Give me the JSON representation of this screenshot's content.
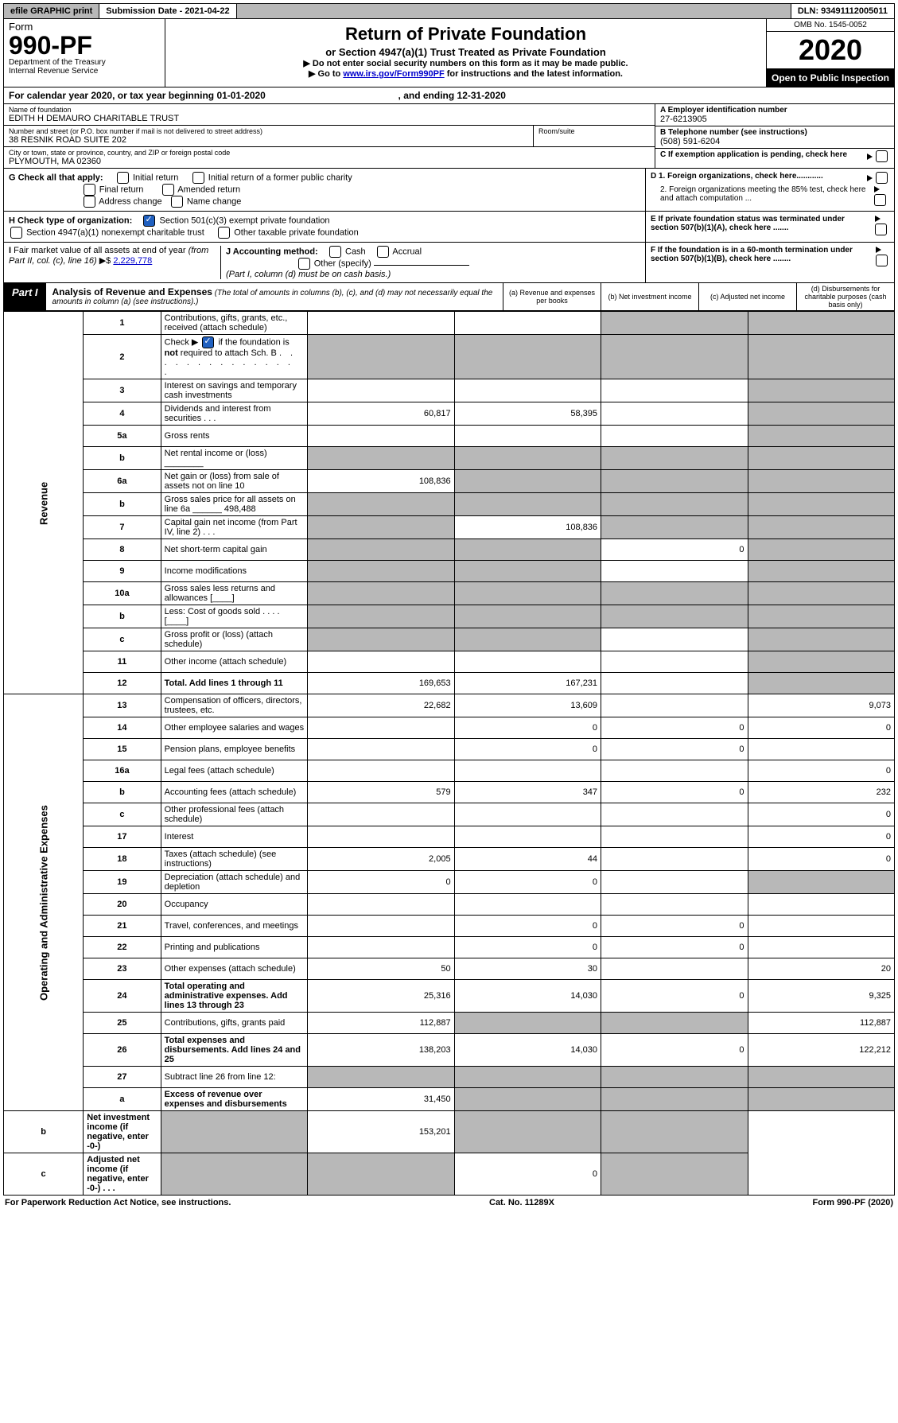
{
  "top": {
    "efile": "efile GRAPHIC print",
    "submission_label": "Submission Date - 2021-04-22",
    "dln": "DLN: 93491112005011"
  },
  "header": {
    "form_word": "Form",
    "form_no": "990-PF",
    "dept": "Department of the Treasury",
    "irs": "Internal Revenue Service",
    "title": "Return of Private Foundation",
    "subtitle": "or Section 4947(a)(1) Trust Treated as Private Foundation",
    "instr1": "▶ Do not enter social security numbers on this form as it may be made public.",
    "instr2_pre": "▶ Go to ",
    "instr2_link": "www.irs.gov/Form990PF",
    "instr2_post": " for instructions and the latest information.",
    "omb": "OMB No. 1545-0052",
    "year": "2020",
    "open": "Open to Public Inspection"
  },
  "calyear": {
    "text_pre": "For calendar year 2020, or tax year beginning ",
    "begin": "01-01-2020",
    "mid": " , and ending ",
    "end": "12-31-2020"
  },
  "entity": {
    "name_label": "Name of foundation",
    "name": "EDITH H DEMAURO CHARITABLE TRUST",
    "addr_label": "Number and street (or P.O. box number if mail is not delivered to street address)",
    "addr": "38 RESNIK ROAD SUITE 202",
    "room_label": "Room/suite",
    "city_label": "City or town, state or province, country, and ZIP or foreign postal code",
    "city": "PLYMOUTH, MA  02360",
    "a_label": "A Employer identification number",
    "ein": "27-6213905",
    "b_label": "B Telephone number (see instructions)",
    "phone": "(508) 591-6204",
    "c_label": "C If exemption application is pending, check here"
  },
  "checks": {
    "g_label": "G Check all that apply:",
    "g_opts": [
      "Initial return",
      "Initial return of a former public charity",
      "Final return",
      "Amended return",
      "Address change",
      "Name change"
    ],
    "h_label": "H Check type of organization:",
    "h_opt1": "Section 501(c)(3) exempt private foundation",
    "h_opt2": "Section 4947(a)(1) nonexempt charitable trust",
    "h_opt3": "Other taxable private foundation",
    "i_label": "I Fair market value of all assets at end of year (from Part II, col. (c), line 16) ▶$ ",
    "i_value": "2,229,778",
    "j_label": "J Accounting method:",
    "j_cash": "Cash",
    "j_accrual": "Accrual",
    "j_other": "Other (specify)",
    "j_note": "(Part I, column (d) must be on cash basis.)",
    "d1": "D 1. Foreign organizations, check here............",
    "d2": "2. Foreign organizations meeting the 85% test, check here and attach computation ...",
    "e": "E  If private foundation status was terminated under section 507(b)(1)(A), check here .......",
    "f": "F  If the foundation is in a 60-month termination under section 507(b)(1)(B), check here ........"
  },
  "part1": {
    "label": "Part I",
    "title": "Analysis of Revenue and Expenses",
    "note": " (The total of amounts in columns (b), (c), and (d) may not necessarily equal the amounts in column (a) (see instructions).)",
    "col_a": "(a) Revenue and expenses per books",
    "col_b": "(b) Net investment income",
    "col_c": "(c) Adjusted net income",
    "col_d": "(d) Disbursements for charitable purposes (cash basis only)"
  },
  "sections": {
    "revenue": "Revenue",
    "expenses": "Operating and Administrative Expenses"
  },
  "rows": [
    {
      "n": "1",
      "d": "Contributions, gifts, grants, etc., received (attach schedule)",
      "a": "",
      "b": "",
      "c": "s",
      "dd": "s"
    },
    {
      "n": "2",
      "d": "Check ▶ ☑ if the foundation is not required to attach Sch. B",
      "a": "s",
      "b": "s",
      "c": "s",
      "dd": "s",
      "bold_not": true
    },
    {
      "n": "3",
      "d": "Interest on savings and temporary cash investments",
      "a": "",
      "b": "",
      "c": "",
      "dd": "s"
    },
    {
      "n": "4",
      "d": "Dividends and interest from securities    .  .  .",
      "a": "60,817",
      "b": "58,395",
      "c": "",
      "dd": "s"
    },
    {
      "n": "5a",
      "d": "Gross rents",
      "a": "",
      "b": "",
      "c": "",
      "dd": "s"
    },
    {
      "n": "b",
      "d": "Net rental income or (loss)  ________",
      "a": "s",
      "b": "s",
      "c": "s",
      "dd": "s"
    },
    {
      "n": "6a",
      "d": "Net gain or (loss) from sale of assets not on line 10",
      "a": "108,836",
      "b": "s",
      "c": "s",
      "dd": "s"
    },
    {
      "n": "b",
      "d": "Gross sales price for all assets on line 6a ______ 498,488",
      "a": "s",
      "b": "s",
      "c": "s",
      "dd": "s"
    },
    {
      "n": "7",
      "d": "Capital gain net income (from Part IV, line 2)   .  .  .",
      "a": "s",
      "b": "108,836",
      "c": "s",
      "dd": "s"
    },
    {
      "n": "8",
      "d": "Net short-term capital gain",
      "a": "s",
      "b": "s",
      "c": "0",
      "dd": "s"
    },
    {
      "n": "9",
      "d": "Income modifications",
      "a": "s",
      "b": "s",
      "c": "",
      "dd": "s"
    },
    {
      "n": "10a",
      "d": "Gross sales less returns and allowances  [____]",
      "a": "s",
      "b": "s",
      "c": "s",
      "dd": "s"
    },
    {
      "n": "b",
      "d": "Less: Cost of goods sold     .  .  .  .  [____]",
      "a": "s",
      "b": "s",
      "c": "s",
      "dd": "s"
    },
    {
      "n": "c",
      "d": "Gross profit or (loss) (attach schedule)",
      "a": "s",
      "b": "s",
      "c": "",
      "dd": "s"
    },
    {
      "n": "11",
      "d": "Other income (attach schedule)",
      "a": "",
      "b": "",
      "c": "",
      "dd": "s"
    },
    {
      "n": "12",
      "d": "Total. Add lines 1 through 11",
      "a": "169,653",
      "b": "167,231",
      "c": "",
      "dd": "s",
      "bold": true
    },
    {
      "n": "13",
      "d": "Compensation of officers, directors, trustees, etc.",
      "a": "22,682",
      "b": "13,609",
      "c": "",
      "dd": "9,073"
    },
    {
      "n": "14",
      "d": "Other employee salaries and wages",
      "a": "",
      "b": "0",
      "c": "0",
      "dd": "0"
    },
    {
      "n": "15",
      "d": "Pension plans, employee benefits",
      "a": "",
      "b": "0",
      "c": "0",
      "dd": ""
    },
    {
      "n": "16a",
      "d": "Legal fees (attach schedule)",
      "a": "",
      "b": "",
      "c": "",
      "dd": "0"
    },
    {
      "n": "b",
      "d": "Accounting fees (attach schedule)",
      "a": "579",
      "b": "347",
      "c": "0",
      "dd": "232"
    },
    {
      "n": "c",
      "d": "Other professional fees (attach schedule)",
      "a": "",
      "b": "",
      "c": "",
      "dd": "0"
    },
    {
      "n": "17",
      "d": "Interest",
      "a": "",
      "b": "",
      "c": "",
      "dd": "0"
    },
    {
      "n": "18",
      "d": "Taxes (attach schedule) (see instructions)",
      "a": "2,005",
      "b": "44",
      "c": "",
      "dd": "0"
    },
    {
      "n": "19",
      "d": "Depreciation (attach schedule) and depletion",
      "a": "0",
      "b": "0",
      "c": "",
      "dd": "s"
    },
    {
      "n": "20",
      "d": "Occupancy",
      "a": "",
      "b": "",
      "c": "",
      "dd": ""
    },
    {
      "n": "21",
      "d": "Travel, conferences, and meetings",
      "a": "",
      "b": "0",
      "c": "0",
      "dd": ""
    },
    {
      "n": "22",
      "d": "Printing and publications",
      "a": "",
      "b": "0",
      "c": "0",
      "dd": ""
    },
    {
      "n": "23",
      "d": "Other expenses (attach schedule)",
      "a": "50",
      "b": "30",
      "c": "",
      "dd": "20"
    },
    {
      "n": "24",
      "d": "Total operating and administrative expenses. Add lines 13 through 23",
      "a": "25,316",
      "b": "14,030",
      "c": "0",
      "dd": "9,325",
      "bold": true
    },
    {
      "n": "25",
      "d": "Contributions, gifts, grants paid",
      "a": "112,887",
      "b": "s",
      "c": "s",
      "dd": "112,887"
    },
    {
      "n": "26",
      "d": "Total expenses and disbursements. Add lines 24 and 25",
      "a": "138,203",
      "b": "14,030",
      "c": "0",
      "dd": "122,212",
      "bold": true
    },
    {
      "n": "27",
      "d": "Subtract line 26 from line 12:",
      "a": "s",
      "b": "s",
      "c": "s",
      "dd": "s"
    },
    {
      "n": "a",
      "d": "Excess of revenue over expenses and disbursements",
      "a": "31,450",
      "b": "s",
      "c": "s",
      "dd": "s",
      "bold": true
    },
    {
      "n": "b",
      "d": "Net investment income (if negative, enter -0-)",
      "a": "s",
      "b": "153,201",
      "c": "s",
      "dd": "s",
      "bold": true
    },
    {
      "n": "c",
      "d": "Adjusted net income (if negative, enter -0-)   .  .  .",
      "a": "s",
      "b": "s",
      "c": "0",
      "dd": "s",
      "bold": true
    }
  ],
  "footer": {
    "left": "For Paperwork Reduction Act Notice, see instructions.",
    "mid": "Cat. No. 11289X",
    "right": "Form 990-PF (2020)"
  }
}
